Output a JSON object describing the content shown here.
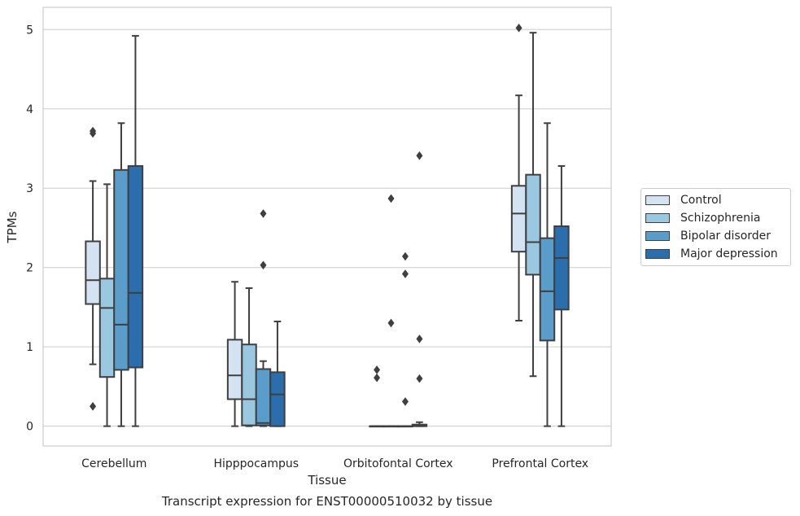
{
  "chart_data": {
    "type": "box",
    "xlabel": "Tissue",
    "ylabel": "TPMs",
    "ylim": [
      -0.25,
      5.28
    ],
    "yticks": [
      0,
      1,
      2,
      3,
      4,
      5
    ],
    "categories": [
      "Cerebellum",
      "Hipppocampus",
      "Orbitofontal Cortex",
      "Prefrontal Cortex"
    ],
    "grid": true,
    "legend_position": "right",
    "series": [
      {
        "name": "Control",
        "color": "#d3e3f1",
        "boxes": [
          {
            "whislo": 0.78,
            "q1": 1.54,
            "med": 1.84,
            "q3": 2.33,
            "whishi": 3.09,
            "fliers": [
              3.69,
              3.72,
              0.25
            ]
          },
          {
            "whislo": 0.0,
            "q1": 0.34,
            "med": 0.64,
            "q3": 1.09,
            "whishi": 1.82,
            "fliers": []
          },
          {
            "whislo": 0.0,
            "q1": 0.0,
            "med": 0.0,
            "q3": 0.0,
            "whishi": 0.0,
            "fliers": [
              0.71,
              0.61
            ]
          },
          {
            "whislo": 1.33,
            "q1": 2.2,
            "med": 2.68,
            "q3": 3.03,
            "whishi": 4.17,
            "fliers": [
              5.02
            ]
          }
        ]
      },
      {
        "name": "Schizophrenia",
        "color": "#9ac8e0",
        "boxes": [
          {
            "whislo": 0.0,
            "q1": 0.62,
            "med": 1.49,
            "q3": 1.86,
            "whishi": 3.05,
            "fliers": []
          },
          {
            "whislo": 0.0,
            "q1": 0.01,
            "med": 0.34,
            "q3": 1.03,
            "whishi": 1.74,
            "fliers": []
          },
          {
            "whislo": 0.0,
            "q1": 0.0,
            "med": 0.0,
            "q3": 0.0,
            "whishi": 0.0,
            "fliers": [
              2.87,
              1.3
            ]
          },
          {
            "whislo": 0.63,
            "q1": 1.91,
            "med": 2.32,
            "q3": 3.17,
            "whishi": 4.96,
            "fliers": []
          }
        ]
      },
      {
        "name": "Bipolar disorder",
        "color": "#5a9dca",
        "boxes": [
          {
            "whislo": 0.0,
            "q1": 0.71,
            "med": 1.28,
            "q3": 3.23,
            "whishi": 3.82,
            "fliers": []
          },
          {
            "whislo": 0.0,
            "q1": 0.01,
            "med": 0.04,
            "q3": 0.72,
            "whishi": 0.82,
            "fliers": [
              2.68,
              2.03
            ]
          },
          {
            "whislo": 0.0,
            "q1": 0.0,
            "med": 0.0,
            "q3": 0.0,
            "whishi": 0.0,
            "fliers": [
              2.14,
              1.92,
              0.31
            ]
          },
          {
            "whislo": 0.0,
            "q1": 1.08,
            "med": 1.7,
            "q3": 2.37,
            "whishi": 3.82,
            "fliers": []
          }
        ]
      },
      {
        "name": "Major depression",
        "color": "#2a6ead",
        "boxes": [
          {
            "whislo": 0.0,
            "q1": 0.74,
            "med": 1.68,
            "q3": 3.28,
            "whishi": 4.92,
            "fliers": []
          },
          {
            "whislo": 0.0,
            "q1": 0.0,
            "med": 0.4,
            "q3": 0.68,
            "whishi": 1.32,
            "fliers": []
          },
          {
            "whislo": 0.0,
            "q1": 0.0,
            "med": 0.01,
            "q3": 0.02,
            "whishi": 0.05,
            "fliers": [
              3.41,
              1.1,
              0.6
            ]
          },
          {
            "whislo": 0.0,
            "q1": 1.47,
            "med": 2.12,
            "q3": 2.52,
            "whishi": 3.28,
            "fliers": []
          }
        ]
      }
    ]
  },
  "caption": "Transcript expression for ENST00000510032 by tissue"
}
